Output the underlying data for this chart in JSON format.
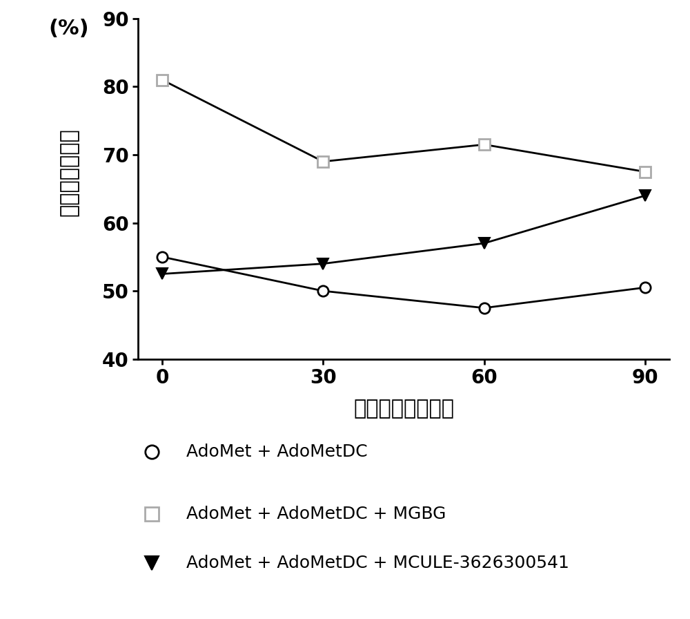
{
  "x": [
    0,
    30,
    60,
    90
  ],
  "series1_y": [
    55,
    50,
    47.5,
    50.5
  ],
  "series2_y": [
    81,
    69,
    71.5,
    67.5
  ],
  "series3_y": [
    52.5,
    54,
    57,
    64
  ],
  "xlabel": "孵育时间（分钟）",
  "ylabel_main": "底物残余百分比",
  "ylabel_pct": "(%)",
  "ylim": [
    40,
    90
  ],
  "yticks": [
    40,
    50,
    60,
    70,
    80,
    90
  ],
  "xticks": [
    0,
    30,
    60,
    90
  ],
  "line_color": "#000000",
  "series1_marker": "o",
  "series2_marker": "s",
  "series3_marker": "v",
  "series2_edgecolor": "#aaaaaa",
  "legend1": "AdoMet + AdoMetDC",
  "legend2": "AdoMet + AdoMetDC + MGBG",
  "legend3": "AdoMet + AdoMetDC + MCULE-3626300541",
  "linewidth": 2.0,
  "markersize": 11,
  "label_fontsize": 22,
  "tick_fontsize": 20,
  "legend_fontsize": 18
}
